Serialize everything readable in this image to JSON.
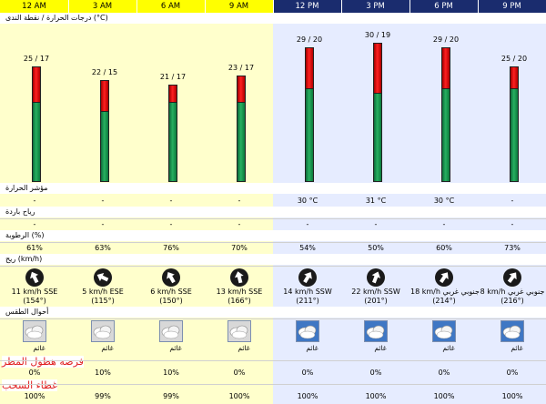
{
  "hours": [
    {
      "label": "12 AM",
      "period": "night",
      "temp": "25 / 17",
      "temp_value": 25,
      "dew_value": 17,
      "heat_index": "-",
      "wind_chill": "-",
      "humidity": "61%",
      "wind_speed": "11 km/h SSE",
      "wind_deg": "(154°)",
      "direction_deg": 154,
      "sky": "غائم",
      "rain": "0%",
      "clouds": "100%"
    },
    {
      "label": "3 AM",
      "period": "night",
      "temp": "22 / 15",
      "temp_value": 22,
      "dew_value": 15,
      "heat_index": "-",
      "wind_chill": "-",
      "humidity": "63%",
      "wind_speed": "5 km/h ESE",
      "wind_deg": "(115°)",
      "direction_deg": 115,
      "sky": "غائم",
      "rain": "10%",
      "clouds": "99%"
    },
    {
      "label": "6 AM",
      "period": "night",
      "temp": "21 / 17",
      "temp_value": 21,
      "dew_value": 17,
      "heat_index": "-",
      "wind_chill": "-",
      "humidity": "76%",
      "wind_speed": "6 km/h SSE",
      "wind_deg": "(150°)",
      "direction_deg": 150,
      "sky": "غائم",
      "rain": "10%",
      "clouds": "99%"
    },
    {
      "label": "9 AM",
      "period": "night",
      "temp": "23 / 17",
      "temp_value": 23,
      "dew_value": 17,
      "heat_index": "-",
      "wind_chill": "-",
      "humidity": "70%",
      "wind_speed": "13 km/h SSE",
      "wind_deg": "(166°)",
      "direction_deg": 166,
      "sky": "غائم",
      "rain": "0%",
      "clouds": "100%"
    },
    {
      "label": "12 PM",
      "period": "day",
      "temp": "29 / 20",
      "temp_value": 29,
      "dew_value": 20,
      "heat_index": "30 °C",
      "wind_chill": "-",
      "humidity": "54%",
      "wind_speed": "14 km/h SSW",
      "wind_deg": "(211°)",
      "direction_deg": 211,
      "sky": "غائم",
      "rain": "0%",
      "clouds": "100%"
    },
    {
      "label": "3 PM",
      "period": "day",
      "temp": "30 / 19",
      "temp_value": 30,
      "dew_value": 19,
      "heat_index": "31 °C",
      "wind_chill": "-",
      "humidity": "50%",
      "wind_speed": "22 km/h SSW",
      "wind_deg": "(201°)",
      "direction_deg": 201,
      "sky": "غائم",
      "rain": "0%",
      "clouds": "100%"
    },
    {
      "label": "6 PM",
      "period": "day",
      "temp": "29 / 20",
      "temp_value": 29,
      "dew_value": 20,
      "heat_index": "30 °C",
      "wind_chill": "-",
      "humidity": "60%",
      "wind_speed": "18 km/h جنوبي غربي",
      "wind_deg": "(214°)",
      "direction_deg": 214,
      "sky": "غائم",
      "rain": "0%",
      "clouds": "100%"
    },
    {
      "label": "9 PM",
      "period": "day",
      "temp": "25 / 20",
      "temp_value": 25,
      "dew_value": 20,
      "heat_index": "-",
      "wind_chill": "-",
      "humidity": "73%",
      "wind_speed": "8 km/h جنوبي غربي",
      "wind_deg": "(216°)",
      "direction_deg": 216,
      "sky": "غائم",
      "rain": "0%",
      "clouds": "100%"
    }
  ],
  "labels": {
    "temperature": "درجات الحرارة / نقطة الندى (°C)",
    "heat_index": "مؤشر الحرارة",
    "wind_chill": "رياح باردة",
    "humidity": "الرطوبة (%)",
    "wind": "ريح (km/h)",
    "sky": "أحوال الطقس",
    "rain": "فرصه هطول المطر",
    "clouds": "غطاء السحب"
  },
  "colors": {
    "night_header": "#ffff00",
    "day_header": "#1a2c6e",
    "night_bg": "#ffffcc",
    "day_bg": "#e6ecff",
    "bar_temp": "#27b060",
    "bar_dew_gap": "#ff2020",
    "section_red": "#e02020"
  },
  "icons": {
    "sky": "cloudy-icon",
    "wind": "wind-direction-arrow-icon"
  }
}
